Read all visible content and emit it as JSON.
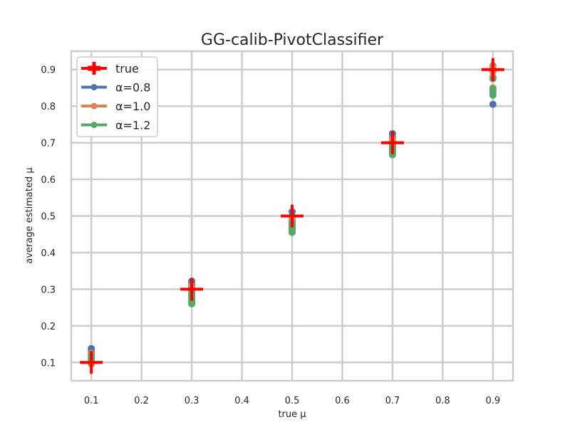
{
  "chart_data": {
    "type": "scatter",
    "title": "GG-calib-PivotClassifier",
    "xlabel": "true μ",
    "ylabel": "average estimated μ",
    "xlim": [
      0.06,
      0.94
    ],
    "ylim": [
      0.05,
      0.95
    ],
    "xticks": [
      0.1,
      0.2,
      0.3,
      0.4,
      0.5,
      0.6,
      0.7,
      0.8,
      0.9
    ],
    "yticks": [
      0.1,
      0.2,
      0.3,
      0.4,
      0.5,
      0.6,
      0.7,
      0.8,
      0.9
    ],
    "grid": true,
    "legend_position": "top-left",
    "true_marker": {
      "name": "true",
      "color": "#ff0000",
      "x": [
        0.1,
        0.3,
        0.5,
        0.7,
        0.9
      ],
      "y": [
        0.1,
        0.3,
        0.5,
        0.7,
        0.9
      ]
    },
    "series": [
      {
        "name": "α=0.8",
        "color": "#4c72b0",
        "points": [
          [
            0.1,
            0.138
          ],
          [
            0.1,
            0.13
          ],
          [
            0.1,
            0.12
          ],
          [
            0.1,
            0.11
          ],
          [
            0.1,
            0.1
          ],
          [
            0.3,
            0.322
          ],
          [
            0.3,
            0.315
          ],
          [
            0.3,
            0.305
          ],
          [
            0.3,
            0.295
          ],
          [
            0.3,
            0.285
          ],
          [
            0.5,
            0.512
          ],
          [
            0.5,
            0.5
          ],
          [
            0.5,
            0.49
          ],
          [
            0.5,
            0.48
          ],
          [
            0.5,
            0.47
          ],
          [
            0.7,
            0.725
          ],
          [
            0.7,
            0.715
          ],
          [
            0.7,
            0.705
          ],
          [
            0.7,
            0.695
          ],
          [
            0.7,
            0.685
          ],
          [
            0.9,
            0.91
          ],
          [
            0.9,
            0.895
          ],
          [
            0.9,
            0.88
          ],
          [
            0.9,
            0.845
          ],
          [
            0.9,
            0.805
          ]
        ]
      },
      {
        "name": "α=1.0",
        "color": "#dd8452",
        "points": [
          [
            0.1,
            0.125
          ],
          [
            0.1,
            0.115
          ],
          [
            0.1,
            0.105
          ],
          [
            0.1,
            0.095
          ],
          [
            0.3,
            0.31
          ],
          [
            0.3,
            0.3
          ],
          [
            0.3,
            0.29
          ],
          [
            0.3,
            0.28
          ],
          [
            0.3,
            0.27
          ],
          [
            0.5,
            0.495
          ],
          [
            0.5,
            0.485
          ],
          [
            0.5,
            0.475
          ],
          [
            0.5,
            0.465
          ],
          [
            0.7,
            0.71
          ],
          [
            0.7,
            0.7
          ],
          [
            0.7,
            0.69
          ],
          [
            0.7,
            0.68
          ],
          [
            0.7,
            0.675
          ],
          [
            0.9,
            0.908
          ],
          [
            0.9,
            0.895
          ],
          [
            0.9,
            0.88
          ],
          [
            0.9,
            0.85
          ]
        ]
      },
      {
        "name": "α=1.2",
        "color": "#55a868",
        "points": [
          [
            0.1,
            0.12
          ],
          [
            0.1,
            0.11
          ],
          [
            0.1,
            0.1
          ],
          [
            0.3,
            0.295
          ],
          [
            0.3,
            0.285
          ],
          [
            0.3,
            0.275
          ],
          [
            0.3,
            0.265
          ],
          [
            0.3,
            0.26
          ],
          [
            0.5,
            0.48
          ],
          [
            0.5,
            0.47
          ],
          [
            0.5,
            0.46
          ],
          [
            0.5,
            0.455
          ],
          [
            0.7,
            0.69
          ],
          [
            0.7,
            0.68
          ],
          [
            0.7,
            0.672
          ],
          [
            0.7,
            0.667
          ],
          [
            0.9,
            0.875
          ],
          [
            0.9,
            0.848
          ],
          [
            0.9,
            0.838
          ],
          [
            0.9,
            0.83
          ]
        ]
      }
    ]
  }
}
